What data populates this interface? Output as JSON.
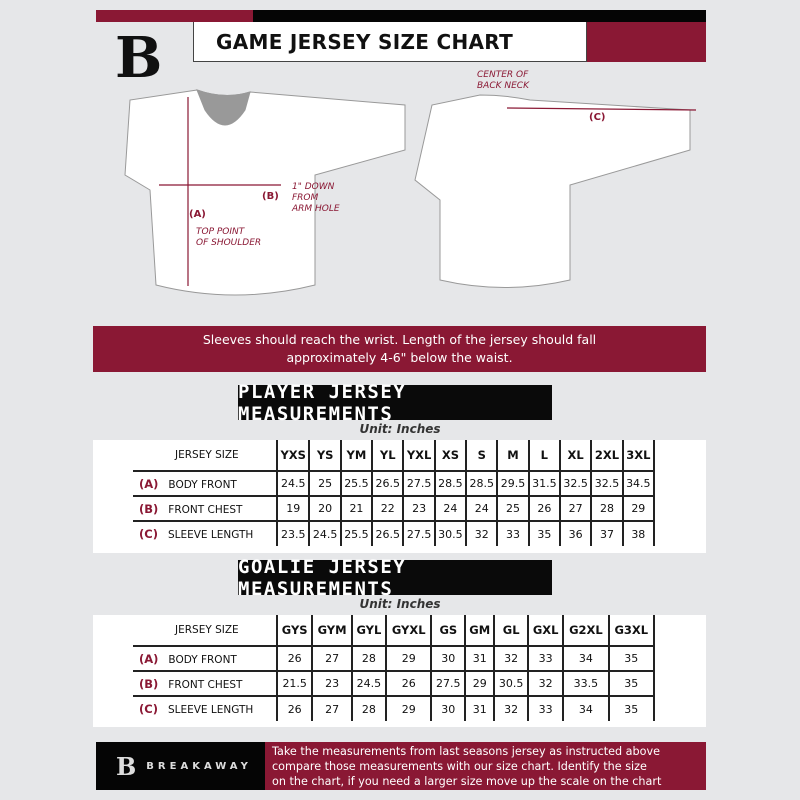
{
  "header": {
    "title": "GAME JERSEY SIZE CHART",
    "logo_letter": "B",
    "accent": "#8a1834"
  },
  "diagram": {
    "label_a": "(A)",
    "label_b": "(B)",
    "label_c": "(C)",
    "top_point": "TOP POINT",
    "of_shoulder": "OF SHOULDER",
    "down1": "1\" DOWN",
    "down2": "FROM",
    "down3": "ARM HOLE",
    "center1": "CENTER OF",
    "center2": "BACK NECK"
  },
  "banner": {
    "line1": "Sleeves should reach the wrist. Length of the jersey should fall",
    "line2": "approximately 4-6\" below the waist."
  },
  "player": {
    "title": "PLAYER JERSEY MEASUREMENTS",
    "unit": "Unit: Inches",
    "size_header": "JERSEY SIZE",
    "sizes": [
      "YXS",
      "YS",
      "YM",
      "YL",
      "YXL",
      "XS",
      "S",
      "M",
      "L",
      "XL",
      "2XL",
      "3XL"
    ],
    "rows": [
      {
        "code": "(A)",
        "label": "BODY FRONT",
        "values": [
          "24.5",
          "25",
          "25.5",
          "26.5",
          "27.5",
          "28.5",
          "28.5",
          "29.5",
          "31.5",
          "32.5",
          "32.5",
          "34.5"
        ]
      },
      {
        "code": "(B)",
        "label": "FRONT CHEST",
        "values": [
          "19",
          "20",
          "21",
          "22",
          "23",
          "24",
          "24",
          "25",
          "26",
          "27",
          "28",
          "29"
        ]
      },
      {
        "code": "(C)",
        "label": "SLEEVE LENGTH",
        "values": [
          "23.5",
          "24.5",
          "25.5",
          "26.5",
          "27.5",
          "30.5",
          "32",
          "33",
          "35",
          "36",
          "37",
          "38"
        ]
      }
    ]
  },
  "goalie": {
    "title": "GOALIE JERSEY MEASUREMENTS",
    "unit": "Unit: Inches",
    "size_header": "JERSEY SIZE",
    "sizes": [
      "GYS",
      "GYM",
      "GYL",
      "GYXL",
      "GS",
      "GM",
      "GL",
      "GXL",
      "G2XL",
      "G3XL"
    ],
    "rows": [
      {
        "code": "(A)",
        "label": "BODY FRONT",
        "values": [
          "26",
          "27",
          "28",
          "29",
          "30",
          "31",
          "32",
          "33",
          "34",
          "35"
        ]
      },
      {
        "code": "(B)",
        "label": "FRONT CHEST",
        "values": [
          "21.5",
          "23",
          "24.5",
          "26",
          "27.5",
          "29",
          "30.5",
          "32",
          "33.5",
          "35"
        ]
      },
      {
        "code": "(C)",
        "label": "SLEEVE LENGTH",
        "values": [
          "26",
          "27",
          "28",
          "29",
          "30",
          "31",
          "32",
          "33",
          "34",
          "35"
        ]
      }
    ]
  },
  "footer": {
    "brand": "BREAKAWAY",
    "text1": "Take the measurements from last seasons jersey as instructed above",
    "text2": "compare those measurements  with our size chart. Identify the size",
    "text3": "on the chart, if you need a larger size move up the scale on the chart"
  }
}
